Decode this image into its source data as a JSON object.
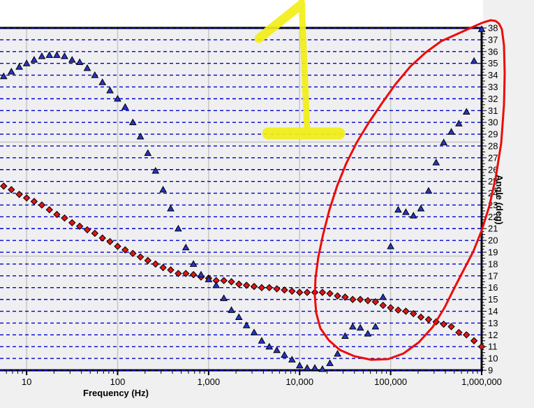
{
  "chart": {
    "plot_bg": "#efeff1",
    "outer_bg": "#f0f0f0",
    "top_margin_bg": "#ffffff",
    "border_color": "#000000",
    "grid_solid_color": "#c6c6c6",
    "grid_dashed_color": "#0000cd"
  },
  "axes": {
    "x": {
      "label": "Frequency  (Hz)",
      "scale": "log",
      "tick_labels": [
        "10",
        "100",
        "1,000",
        "10,000",
        "100,000",
        "1,000,000"
      ],
      "tick_values": [
        10,
        100,
        1000,
        10000,
        100000,
        1000000
      ],
      "min": 5.1,
      "max": 1000000
    },
    "y_right": {
      "label": "Angle  (deg)",
      "min": 9,
      "max": 38,
      "major_step": 1,
      "minor_step": 0.25
    }
  },
  "chart_data": {
    "type": "scatter",
    "title": "",
    "xlabel": "Frequency (Hz)",
    "ylabel": "Angle (deg)",
    "x_scale": "log",
    "xlim": [
      5.1,
      1000000
    ],
    "ylim": [
      9,
      38
    ],
    "grid": "horizontal blue dashed line every 1 deg; solid gray vertical lines at decades; solid gray horizontal lines at thirds",
    "legend_position": "none",
    "x": [
      5.6,
      6.8,
      8.3,
      10,
      12.1,
      14.7,
      17.8,
      21.5,
      26.1,
      31.6,
      38.3,
      46.4,
      56.2,
      68.1,
      82.5,
      100,
      121,
      147,
      178,
      215,
      261,
      316,
      383,
      464,
      562,
      681,
      825,
      1000,
      1210,
      1470,
      1780,
      2150,
      2610,
      3160,
      3830,
      4640,
      5620,
      6810,
      8250,
      10000,
      12100,
      14700,
      17800,
      21500,
      26100,
      31600,
      38300,
      46400,
      56200,
      68100,
      82500,
      100000,
      121000,
      147000,
      178000,
      215000,
      261000,
      316000,
      383000,
      464000,
      562000,
      681000,
      825000,
      1000000
    ],
    "series": [
      {
        "name": "angle-red-diamonds",
        "marker": "diamond",
        "color": "#e01414",
        "values": [
          24.6,
          24.3,
          23.9,
          23.6,
          23.3,
          23.0,
          22.6,
          22.2,
          21.9,
          21.5,
          21.2,
          20.9,
          20.6,
          20.2,
          19.9,
          19.5,
          19.2,
          18.9,
          18.6,
          18.3,
          18.0,
          17.7,
          17.5,
          17.2,
          17.2,
          17.1,
          16.9,
          16.8,
          16.6,
          16.6,
          16.5,
          16.3,
          16.2,
          16.1,
          16.0,
          16.0,
          15.9,
          15.8,
          15.7,
          15.6,
          15.6,
          15.6,
          15.6,
          15.5,
          15.3,
          15.2,
          15.0,
          15.0,
          14.9,
          14.8,
          14.5,
          14.3,
          14.1,
          14.0,
          13.8,
          13.5,
          13.3,
          13.1,
          12.9,
          12.7,
          12.2,
          12.0,
          11.5,
          11.0
        ]
      },
      {
        "name": "angle-blue-triangles",
        "marker": "triangle",
        "color": "#2535c8",
        "values": [
          33.9,
          34.3,
          34.7,
          35.0,
          35.3,
          35.6,
          35.7,
          35.7,
          35.6,
          35.3,
          35.1,
          34.6,
          34.0,
          33.4,
          32.7,
          32.0,
          31.3,
          30.0,
          28.8,
          27.4,
          25.9,
          24.3,
          22.7,
          21.0,
          19.4,
          18.0,
          17.1,
          16.7,
          16.2,
          15.1,
          14.1,
          13.5,
          12.8,
          12.2,
          11.5,
          11.0,
          10.7,
          10.3,
          9.9,
          9.4,
          9.2,
          9.2,
          9.1,
          9.6,
          10.4,
          11.9,
          12.7,
          12.6,
          12.1,
          12.7,
          15.2,
          19.5,
          22.6,
          22.4,
          22.1,
          22.7,
          24.2,
          26.6,
          28.3,
          29.2,
          29.9,
          30.9,
          35.2,
          37.9
        ]
      }
    ]
  },
  "annotations": {
    "highlight": {
      "shape": "hand-drawn numeral 1 (highlighter)",
      "color": "#f2ee16"
    },
    "ellipse": {
      "shape": "hand-drawn loop circling the right-hand rising data",
      "color": "#ee0a0a"
    }
  }
}
